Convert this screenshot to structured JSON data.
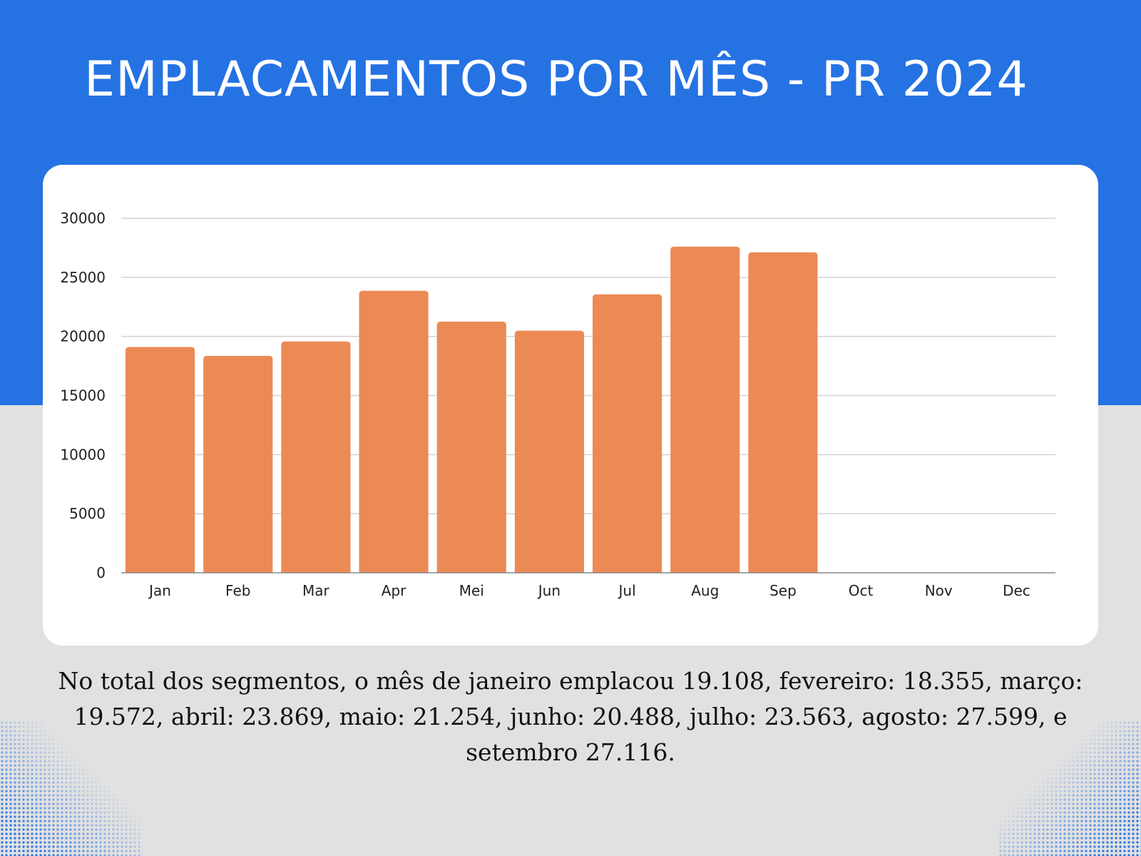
{
  "header": {
    "title": "EMPLACAMENTOS POR MÊS - PR 2024"
  },
  "chart_data": {
    "type": "bar",
    "categories": [
      "Jan",
      "Feb",
      "Mar",
      "Apr",
      "Mei",
      "Jun",
      "Jul",
      "Aug",
      "Sep",
      "Oct",
      "Nov",
      "Dec"
    ],
    "values": [
      19108,
      18355,
      19572,
      23869,
      21254,
      20488,
      23563,
      27599,
      27116,
      null,
      null,
      null
    ],
    "yticks": [
      "0",
      "5000",
      "10000",
      "15000",
      "20000",
      "25000",
      "30000"
    ],
    "ylim": [
      0,
      30000
    ],
    "grid": true,
    "bar_color": "#ec8a55"
  },
  "caption": {
    "text": "No total dos segmentos, o mês de janeiro emplacou 19.108, fevereiro: 18.355, março: 19.572, abril: 23.869, maio: 21.254, junho: 20.488, julho: 23.563, agosto: 27.599, e setembro 27.116."
  },
  "colors": {
    "header_blue": "#2572e3",
    "background_gray": "#e1e1e1",
    "card_white": "#ffffff",
    "bar_orange": "#ec8a55"
  }
}
